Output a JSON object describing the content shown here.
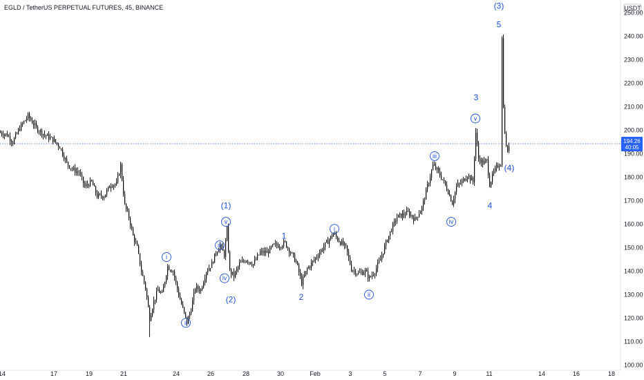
{
  "header": {
    "title": "EGLD / TetherUS PERPETUAL FUTURES, 45, BINANCE"
  },
  "chart_data": {
    "type": "candlestick",
    "currency": "USDT",
    "ylim": [
      100,
      254
    ],
    "yticks": [
      100,
      110,
      120,
      130,
      140,
      150,
      160,
      170,
      180,
      190,
      200,
      210,
      220,
      230,
      240,
      250
    ],
    "xticks": [
      "14",
      "17",
      "19",
      "21",
      "24",
      "26",
      "28",
      "30",
      "Feb",
      "3",
      "5",
      "7",
      "9",
      "11",
      "14",
      "16",
      "18"
    ],
    "last_price": "194.26",
    "countdown": "40:05",
    "colors": {
      "candle": "#000000",
      "wave_label": "#1c4fd8",
      "price_line": "#2962ff",
      "price_label": "#2962ff"
    },
    "series": [
      {
        "name": "path",
        "points": [
          [
            0,
            199
          ],
          [
            10,
            198
          ],
          [
            18,
            195
          ],
          [
            28,
            201
          ],
          [
            40,
            206
          ],
          [
            52,
            201
          ],
          [
            64,
            198
          ],
          [
            76,
            196
          ],
          [
            86,
            193
          ],
          [
            96,
            186
          ],
          [
            106,
            183
          ],
          [
            114,
            182
          ],
          [
            122,
            176
          ],
          [
            132,
            178
          ],
          [
            140,
            172
          ],
          [
            150,
            172
          ],
          [
            160,
            177
          ],
          [
            168,
            177
          ],
          [
            174,
            185
          ],
          [
            180,
            168
          ],
          [
            186,
            163
          ],
          [
            192,
            155
          ],
          [
            198,
            150
          ],
          [
            204,
            140
          ],
          [
            210,
            133
          ],
          [
            216,
            120
          ],
          [
            222,
            127
          ],
          [
            228,
            132
          ],
          [
            234,
            130
          ],
          [
            242,
            142
          ],
          [
            250,
            140
          ],
          [
            258,
            130
          ],
          [
            264,
            124
          ],
          [
            270,
            118
          ],
          [
            276,
            124
          ],
          [
            282,
            133
          ],
          [
            290,
            132
          ],
          [
            298,
            140
          ],
          [
            306,
            143
          ],
          [
            312,
            148
          ],
          [
            318,
            151
          ],
          [
            324,
            147
          ],
          [
            328,
            158
          ],
          [
            332,
            140
          ],
          [
            338,
            138
          ],
          [
            346,
            143
          ],
          [
            356,
            145
          ],
          [
            366,
            143
          ],
          [
            376,
            148
          ],
          [
            386,
            148
          ],
          [
            396,
            151
          ],
          [
            404,
            151
          ],
          [
            412,
            152
          ],
          [
            420,
            148
          ],
          [
            428,
            144
          ],
          [
            436,
            135
          ],
          [
            444,
            141
          ],
          [
            452,
            144
          ],
          [
            462,
            148
          ],
          [
            472,
            152
          ],
          [
            482,
            156
          ],
          [
            490,
            153
          ],
          [
            500,
            150
          ],
          [
            508,
            141
          ],
          [
            518,
            139
          ],
          [
            528,
            140
          ],
          [
            534,
            137
          ],
          [
            542,
            140
          ],
          [
            550,
            145
          ],
          [
            558,
            152
          ],
          [
            566,
            158
          ],
          [
            574,
            163
          ],
          [
            582,
            164
          ],
          [
            590,
            165
          ],
          [
            600,
            162
          ],
          [
            610,
            167
          ],
          [
            618,
            176
          ],
          [
            626,
            185
          ],
          [
            632,
            183
          ],
          [
            640,
            179
          ],
          [
            648,
            174
          ],
          [
            654,
            169
          ],
          [
            660,
            176
          ],
          [
            668,
            178
          ],
          [
            676,
            181
          ],
          [
            684,
            178
          ],
          [
            688,
            199
          ],
          [
            692,
            188
          ],
          [
            698,
            186
          ],
          [
            704,
            187
          ],
          [
            708,
            177
          ],
          [
            714,
            182
          ],
          [
            720,
            185
          ],
          [
            724,
            186
          ],
          [
            726,
            239
          ],
          [
            728,
            211
          ],
          [
            730,
            198
          ],
          [
            734,
            190
          ],
          [
            736,
            194
          ]
        ]
      }
    ],
    "wave_labels": [
      {
        "text": "(3)",
        "x": 722,
        "y": 253,
        "style": "plain"
      },
      {
        "text": "5",
        "x": 722,
        "y": 245,
        "style": "plain"
      },
      {
        "text": "3",
        "x": 689,
        "y": 214,
        "style": "plain"
      },
      {
        "text": "v",
        "x": 688,
        "y": 205,
        "style": "circle"
      },
      {
        "text": "iii",
        "x": 629,
        "y": 189,
        "style": "circle"
      },
      {
        "text": "(4)",
        "x": 737,
        "y": 184,
        "style": "plain"
      },
      {
        "text": "4",
        "x": 709,
        "y": 168,
        "style": "plain"
      },
      {
        "text": "iv",
        "x": 653,
        "y": 161,
        "style": "circle"
      },
      {
        "text": "(1)",
        "x": 327,
        "y": 168,
        "style": "plain"
      },
      {
        "text": "v",
        "x": 327,
        "y": 161,
        "style": "circle"
      },
      {
        "text": "iii",
        "x": 318,
        "y": 151,
        "style": "circle"
      },
      {
        "text": "i",
        "x": 241,
        "y": 146,
        "style": "circle"
      },
      {
        "text": "iv",
        "x": 325,
        "y": 137,
        "style": "circle"
      },
      {
        "text": "(2)",
        "x": 334,
        "y": 128,
        "style": "plain"
      },
      {
        "text": "ii",
        "x": 269,
        "y": 118,
        "style": "circle"
      },
      {
        "text": "1",
        "x": 411,
        "y": 155,
        "style": "plain"
      },
      {
        "text": "2",
        "x": 436,
        "y": 129,
        "style": "plain"
      },
      {
        "text": "i",
        "x": 484,
        "y": 158,
        "style": "circle"
      },
      {
        "text": "ii",
        "x": 534,
        "y": 130,
        "style": "circle"
      }
    ]
  }
}
